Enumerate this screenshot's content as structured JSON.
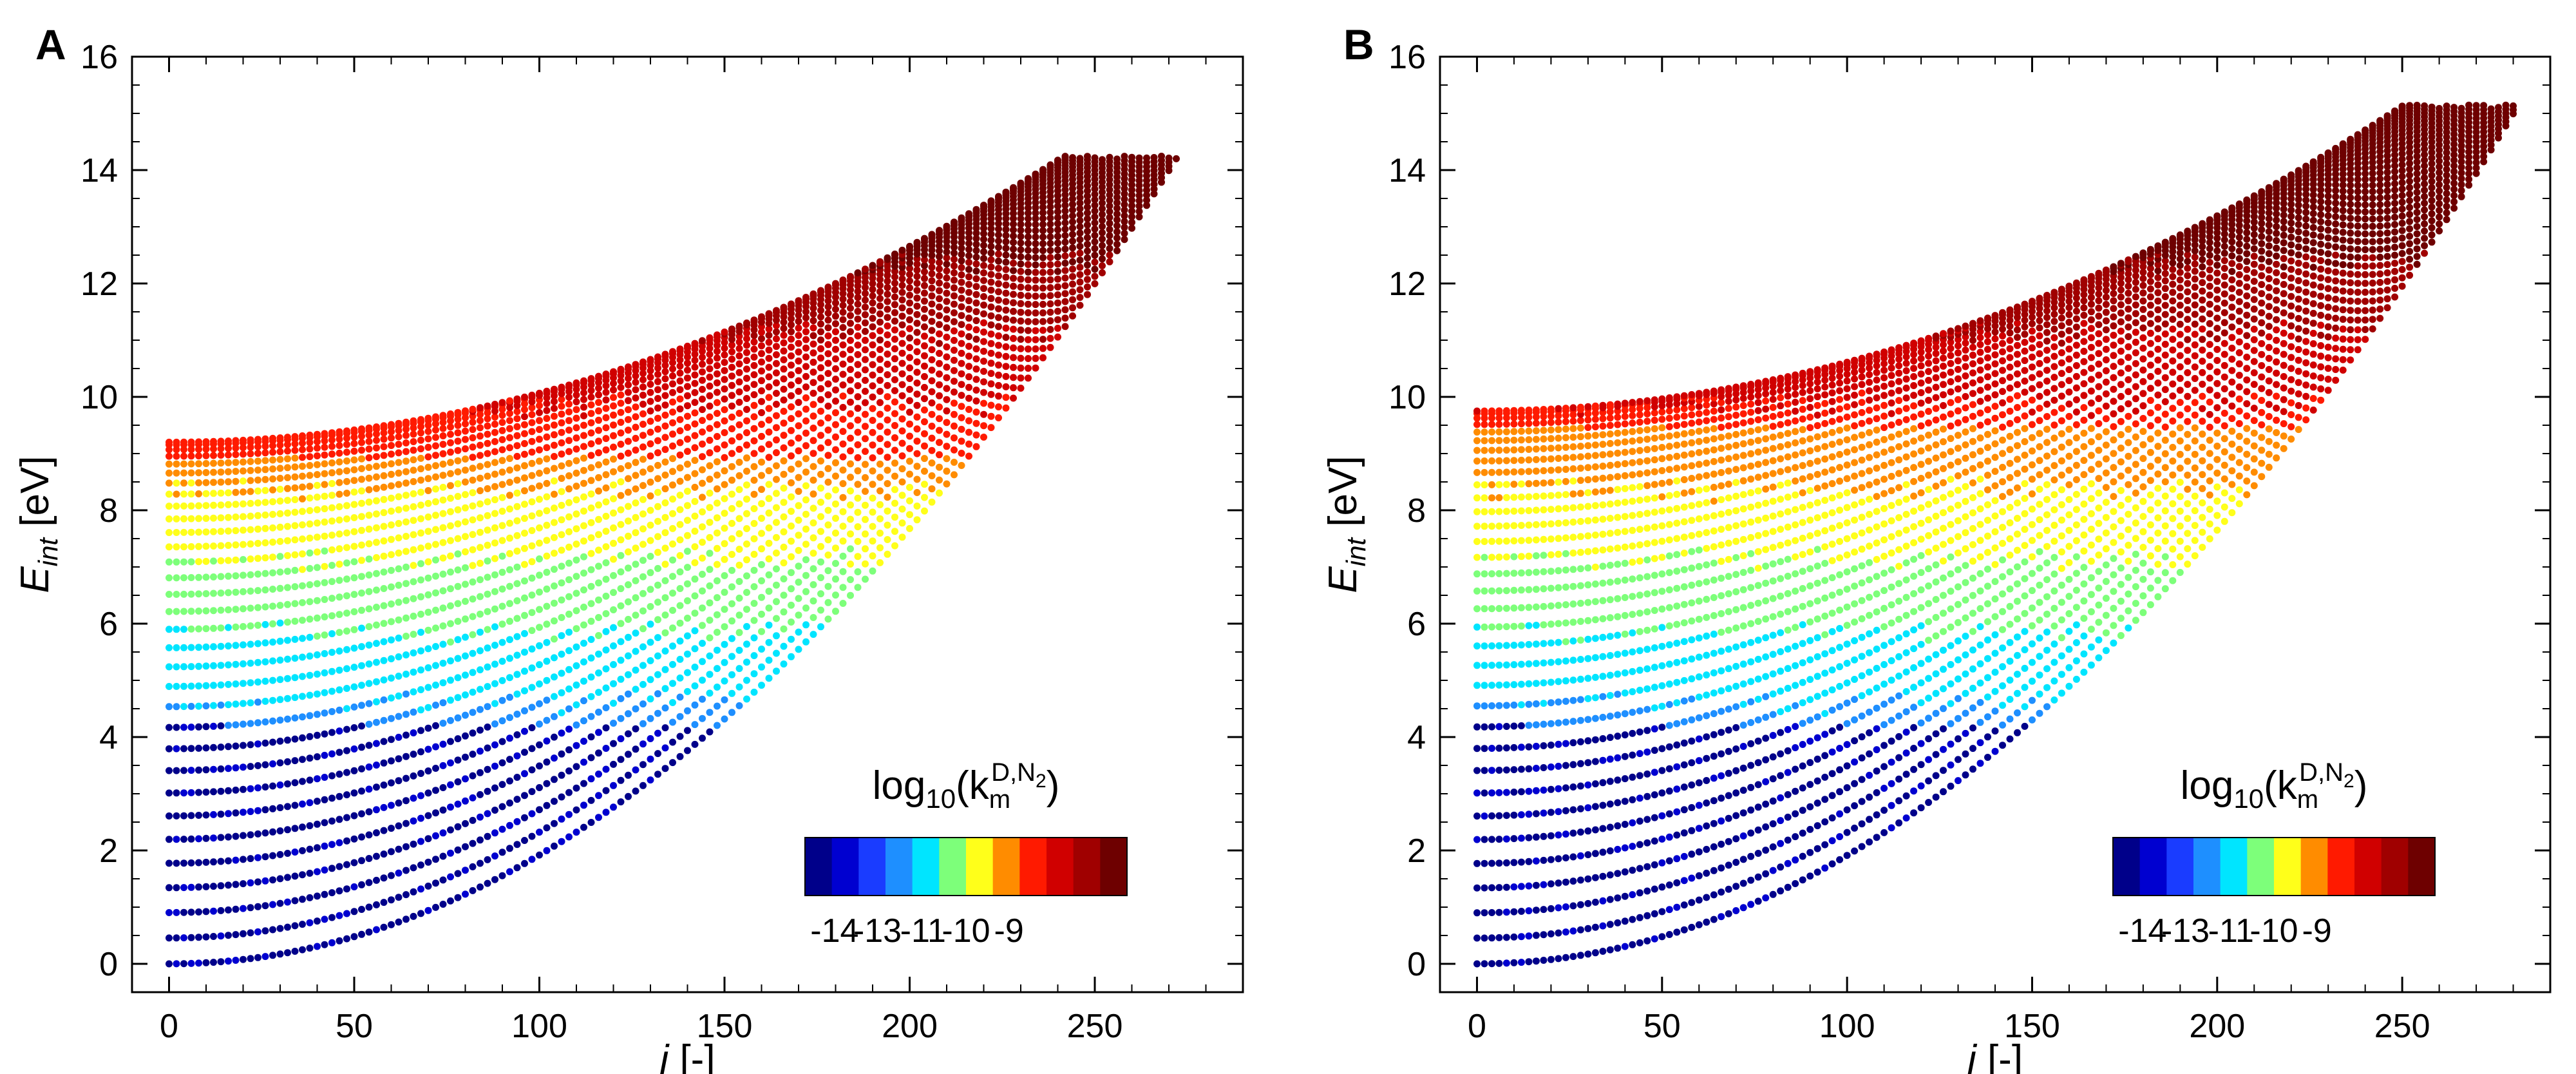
{
  "chart_data": [
    {
      "type": "scatter",
      "panel_label": "A",
      "xlabel": "j [-]",
      "xlabel_italic": "j",
      "xlabel_rest": " [-]",
      "ylabel": "E_int [eV]",
      "ylabel_main": "E",
      "ylabel_sub": "int",
      "ylabel_rest": " [eV]",
      "xlim": [
        -10,
        290
      ],
      "ylim": [
        -0.5,
        16
      ],
      "xticks": [
        0,
        50,
        100,
        150,
        200,
        250
      ],
      "yticks": [
        0,
        2,
        4,
        6,
        8,
        10,
        12,
        14,
        16
      ],
      "grid": false,
      "series_desc": "rovibrational levels (v, j), one curve per vibrational level, colored by log10 rate",
      "v_max": 31,
      "dissociation_energy": 9.2,
      "j_max": 272,
      "e_at_jmax": 14.2,
      "colorbar": {
        "title_main": "log",
        "title_sub": "10",
        "title_paren_open": "(k",
        "title_k_sub": "m",
        "title_k_sup": "D,N",
        "title_k_sup_sub": "2",
        "title_paren_close": ")",
        "placement": "lower-right",
        "tick_labels": [
          "-14",
          "-13",
          "-11",
          "-10",
          "-9"
        ],
        "colors": [
          "#00008a",
          "#0000d0",
          "#1a3cff",
          "#1e8fff",
          "#00e5ff",
          "#7dff7a",
          "#ffff1a",
          "#ff8c00",
          "#ff1a00",
          "#d00000",
          "#a00000",
          "#6e0000"
        ]
      }
    },
    {
      "type": "scatter",
      "panel_label": "B",
      "xlabel": "j [-]",
      "xlabel_italic": "j",
      "xlabel_rest": " [-]",
      "ylabel": "E_int [eV]",
      "ylabel_main": "E",
      "ylabel_sub": "int",
      "ylabel_rest": " [eV]",
      "xlim": [
        -10,
        290
      ],
      "ylim": [
        -0.5,
        16
      ],
      "xticks": [
        0,
        50,
        100,
        150,
        200,
        250
      ],
      "yticks": [
        0,
        2,
        4,
        6,
        8,
        10,
        12,
        14,
        16
      ],
      "grid": false,
      "series_desc": "rovibrational levels (v, j), one curve per vibrational level, colored by log10 rate",
      "v_max": 33,
      "dissociation_energy": 9.75,
      "j_max": 281,
      "e_at_jmax": 15.1,
      "colorbar": {
        "title_main": "log",
        "title_sub": "10",
        "title_paren_open": "(k",
        "title_k_sub": "m",
        "title_k_sup": "D,N",
        "title_k_sup_sub": "2",
        "title_paren_close": ")",
        "placement": "lower-right",
        "tick_labels": [
          "-14",
          "-13",
          "-11",
          "-10",
          "-9"
        ],
        "colors": [
          "#00008a",
          "#0000d0",
          "#1a3cff",
          "#1e8fff",
          "#00e5ff",
          "#7dff7a",
          "#ffff1a",
          "#ff8c00",
          "#ff1a00",
          "#d00000",
          "#a00000",
          "#6e0000"
        ]
      }
    }
  ]
}
